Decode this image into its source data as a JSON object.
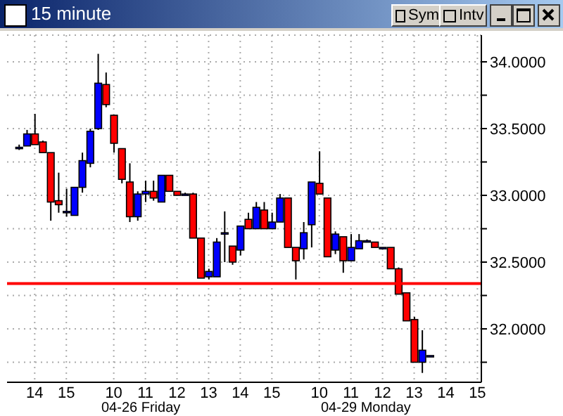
{
  "chart_data": {
    "type": "candlestick",
    "title": "15 minute",
    "categories": [
      null,
      null,
      null,
      "14",
      null,
      null,
      null,
      "15",
      null,
      null,
      null,
      null,
      null,
      "10",
      null,
      null,
      null,
      "11",
      null,
      null,
      null,
      "12",
      null,
      null,
      null,
      "13",
      null,
      null,
      null,
      "14",
      null,
      null,
      null,
      "15",
      null,
      null,
      null,
      null,
      null,
      "10",
      null,
      null,
      null,
      "11",
      null,
      null,
      null,
      "12",
      null,
      null,
      null,
      "13",
      null,
      null,
      null,
      "14",
      null,
      null,
      null,
      "15"
    ],
    "ohlc": [
      null,
      [
        33.36,
        33.38,
        33.34,
        33.36
      ],
      [
        33.37,
        33.49,
        33.37,
        33.46
      ],
      [
        33.46,
        33.61,
        33.38,
        33.38
      ],
      [
        33.4,
        33.41,
        33.32,
        33.32
      ],
      [
        33.32,
        33.32,
        32.81,
        32.95
      ],
      [
        32.96,
        33.17,
        32.87,
        32.93
      ],
      [
        32.88,
        33.05,
        32.84,
        32.88
      ],
      [
        32.85,
        33.06,
        32.85,
        33.06
      ],
      [
        33.06,
        33.32,
        33.02,
        33.26
      ],
      [
        33.24,
        33.5,
        33.21,
        33.48
      ],
      [
        33.5,
        34.06,
        33.49,
        33.84
      ],
      [
        33.83,
        33.92,
        33.66,
        33.68
      ],
      [
        33.6,
        33.6,
        33.32,
        33.39
      ],
      [
        33.35,
        33.35,
        33.09,
        33.12
      ],
      [
        33.1,
        33.24,
        32.8,
        32.84
      ],
      [
        32.84,
        33.03,
        32.81,
        33.01
      ],
      [
        33.01,
        33.11,
        32.95,
        33.03
      ],
      [
        33.03,
        33.11,
        32.96,
        32.98
      ],
      [
        32.95,
        33.15,
        32.95,
        33.15
      ],
      [
        33.15,
        33.15,
        33.03,
        33.03
      ],
      [
        33.03,
        33.03,
        33.0,
        33.0
      ],
      [
        33.01,
        33.02,
        33.0,
        33.01
      ],
      [
        33.01,
        33.02,
        32.68,
        32.68
      ],
      [
        32.68,
        32.68,
        32.38,
        32.38
      ],
      [
        32.39,
        32.45,
        32.37,
        32.43
      ],
      [
        32.39,
        32.68,
        32.39,
        32.65
      ],
      [
        32.72,
        32.88,
        32.5,
        32.72
      ],
      [
        32.62,
        32.62,
        32.48,
        32.5
      ],
      [
        32.59,
        32.77,
        32.55,
        32.77
      ],
      [
        32.82,
        32.87,
        32.75,
        32.75
      ],
      [
        32.75,
        32.95,
        32.75,
        32.91
      ],
      [
        32.89,
        32.95,
        32.75,
        32.75
      ],
      [
        32.75,
        32.87,
        32.75,
        32.8
      ],
      [
        32.8,
        33.01,
        32.8,
        32.98
      ],
      [
        32.98,
        32.98,
        32.61,
        32.61
      ],
      [
        32.61,
        32.61,
        32.37,
        32.51
      ],
      [
        32.6,
        32.8,
        32.52,
        32.72
      ],
      [
        32.78,
        33.1,
        32.61,
        33.1
      ],
      [
        33.09,
        33.33,
        33.01,
        33.01
      ],
      [
        32.98,
        32.98,
        32.54,
        32.54
      ],
      [
        32.59,
        32.73,
        32.56,
        32.71
      ],
      [
        32.69,
        32.69,
        32.42,
        32.51
      ],
      [
        32.51,
        32.71,
        32.51,
        32.61
      ],
      [
        32.6,
        32.71,
        32.6,
        32.66
      ],
      [
        32.66,
        32.67,
        32.66,
        32.66
      ],
      [
        32.65,
        32.65,
        32.61,
        32.61
      ],
      [
        32.61,
        32.61,
        32.6,
        32.61
      ],
      [
        32.61,
        32.61,
        32.45,
        32.45
      ],
      [
        32.45,
        32.46,
        32.26,
        32.26
      ],
      [
        32.27,
        32.27,
        32.06,
        32.06
      ],
      [
        32.07,
        32.09,
        31.75,
        31.75
      ],
      [
        31.75,
        31.99,
        31.67,
        31.84
      ],
      [
        31.8,
        31.8,
        31.8,
        31.8
      ],
      null,
      null,
      null,
      null,
      null,
      null
    ],
    "colors": [
      null,
      "#0000ff",
      "#0000ff",
      "#ff0000",
      "#ff0000",
      "#ff0000",
      "#ff0000",
      "#0000ff",
      "#0000ff",
      "#0000ff",
      "#0000ff",
      "#0000ff",
      "#ff0000",
      "#ff0000",
      "#ff0000",
      "#ff0000",
      "#0000ff",
      "#0000ff",
      "#ff0000",
      "#0000ff",
      "#ff0000",
      "#ff0000",
      "#0000ff",
      "#ff0000",
      "#ff0000",
      "#0000ff",
      "#0000ff",
      "#0000ff",
      "#ff0000",
      "#0000ff",
      "#ff0000",
      "#0000ff",
      "#ff0000",
      "#0000ff",
      "#0000ff",
      "#ff0000",
      "#ff0000",
      "#0000ff",
      "#0000ff",
      "#ff0000",
      "#ff0000",
      "#0000ff",
      "#ff0000",
      "#0000ff",
      "#0000ff",
      "#0000ff",
      "#ff0000",
      "#0000ff",
      "#ff0000",
      "#ff0000",
      "#ff0000",
      "#ff0000",
      "#0000ff",
      "#0000ff",
      null,
      null,
      null,
      null,
      null,
      null
    ],
    "ylim": [
      31.6,
      34.2
    ],
    "yticks": [
      {
        "value": 31.75,
        "label": null
      },
      {
        "value": 32,
        "label": "32.0000"
      },
      {
        "value": 32.25,
        "label": null
      },
      {
        "value": 32.5,
        "label": "32.5000"
      },
      {
        "value": 32.75,
        "label": null
      },
      {
        "value": 33,
        "label": "33.0000"
      },
      {
        "value": 33.25,
        "label": null
      },
      {
        "value": 33.5,
        "label": "33.5000"
      },
      {
        "value": 33.75,
        "label": null
      },
      {
        "value": 34,
        "label": "34.0000"
      }
    ],
    "grid": true,
    "ref_lines": [
      {
        "axis": "y",
        "value": 32.34,
        "color": "#ff0000"
      }
    ],
    "annotations": [
      "04-26 Friday",
      "04-29 Monday",
      "Sym",
      "Intv"
    ]
  }
}
